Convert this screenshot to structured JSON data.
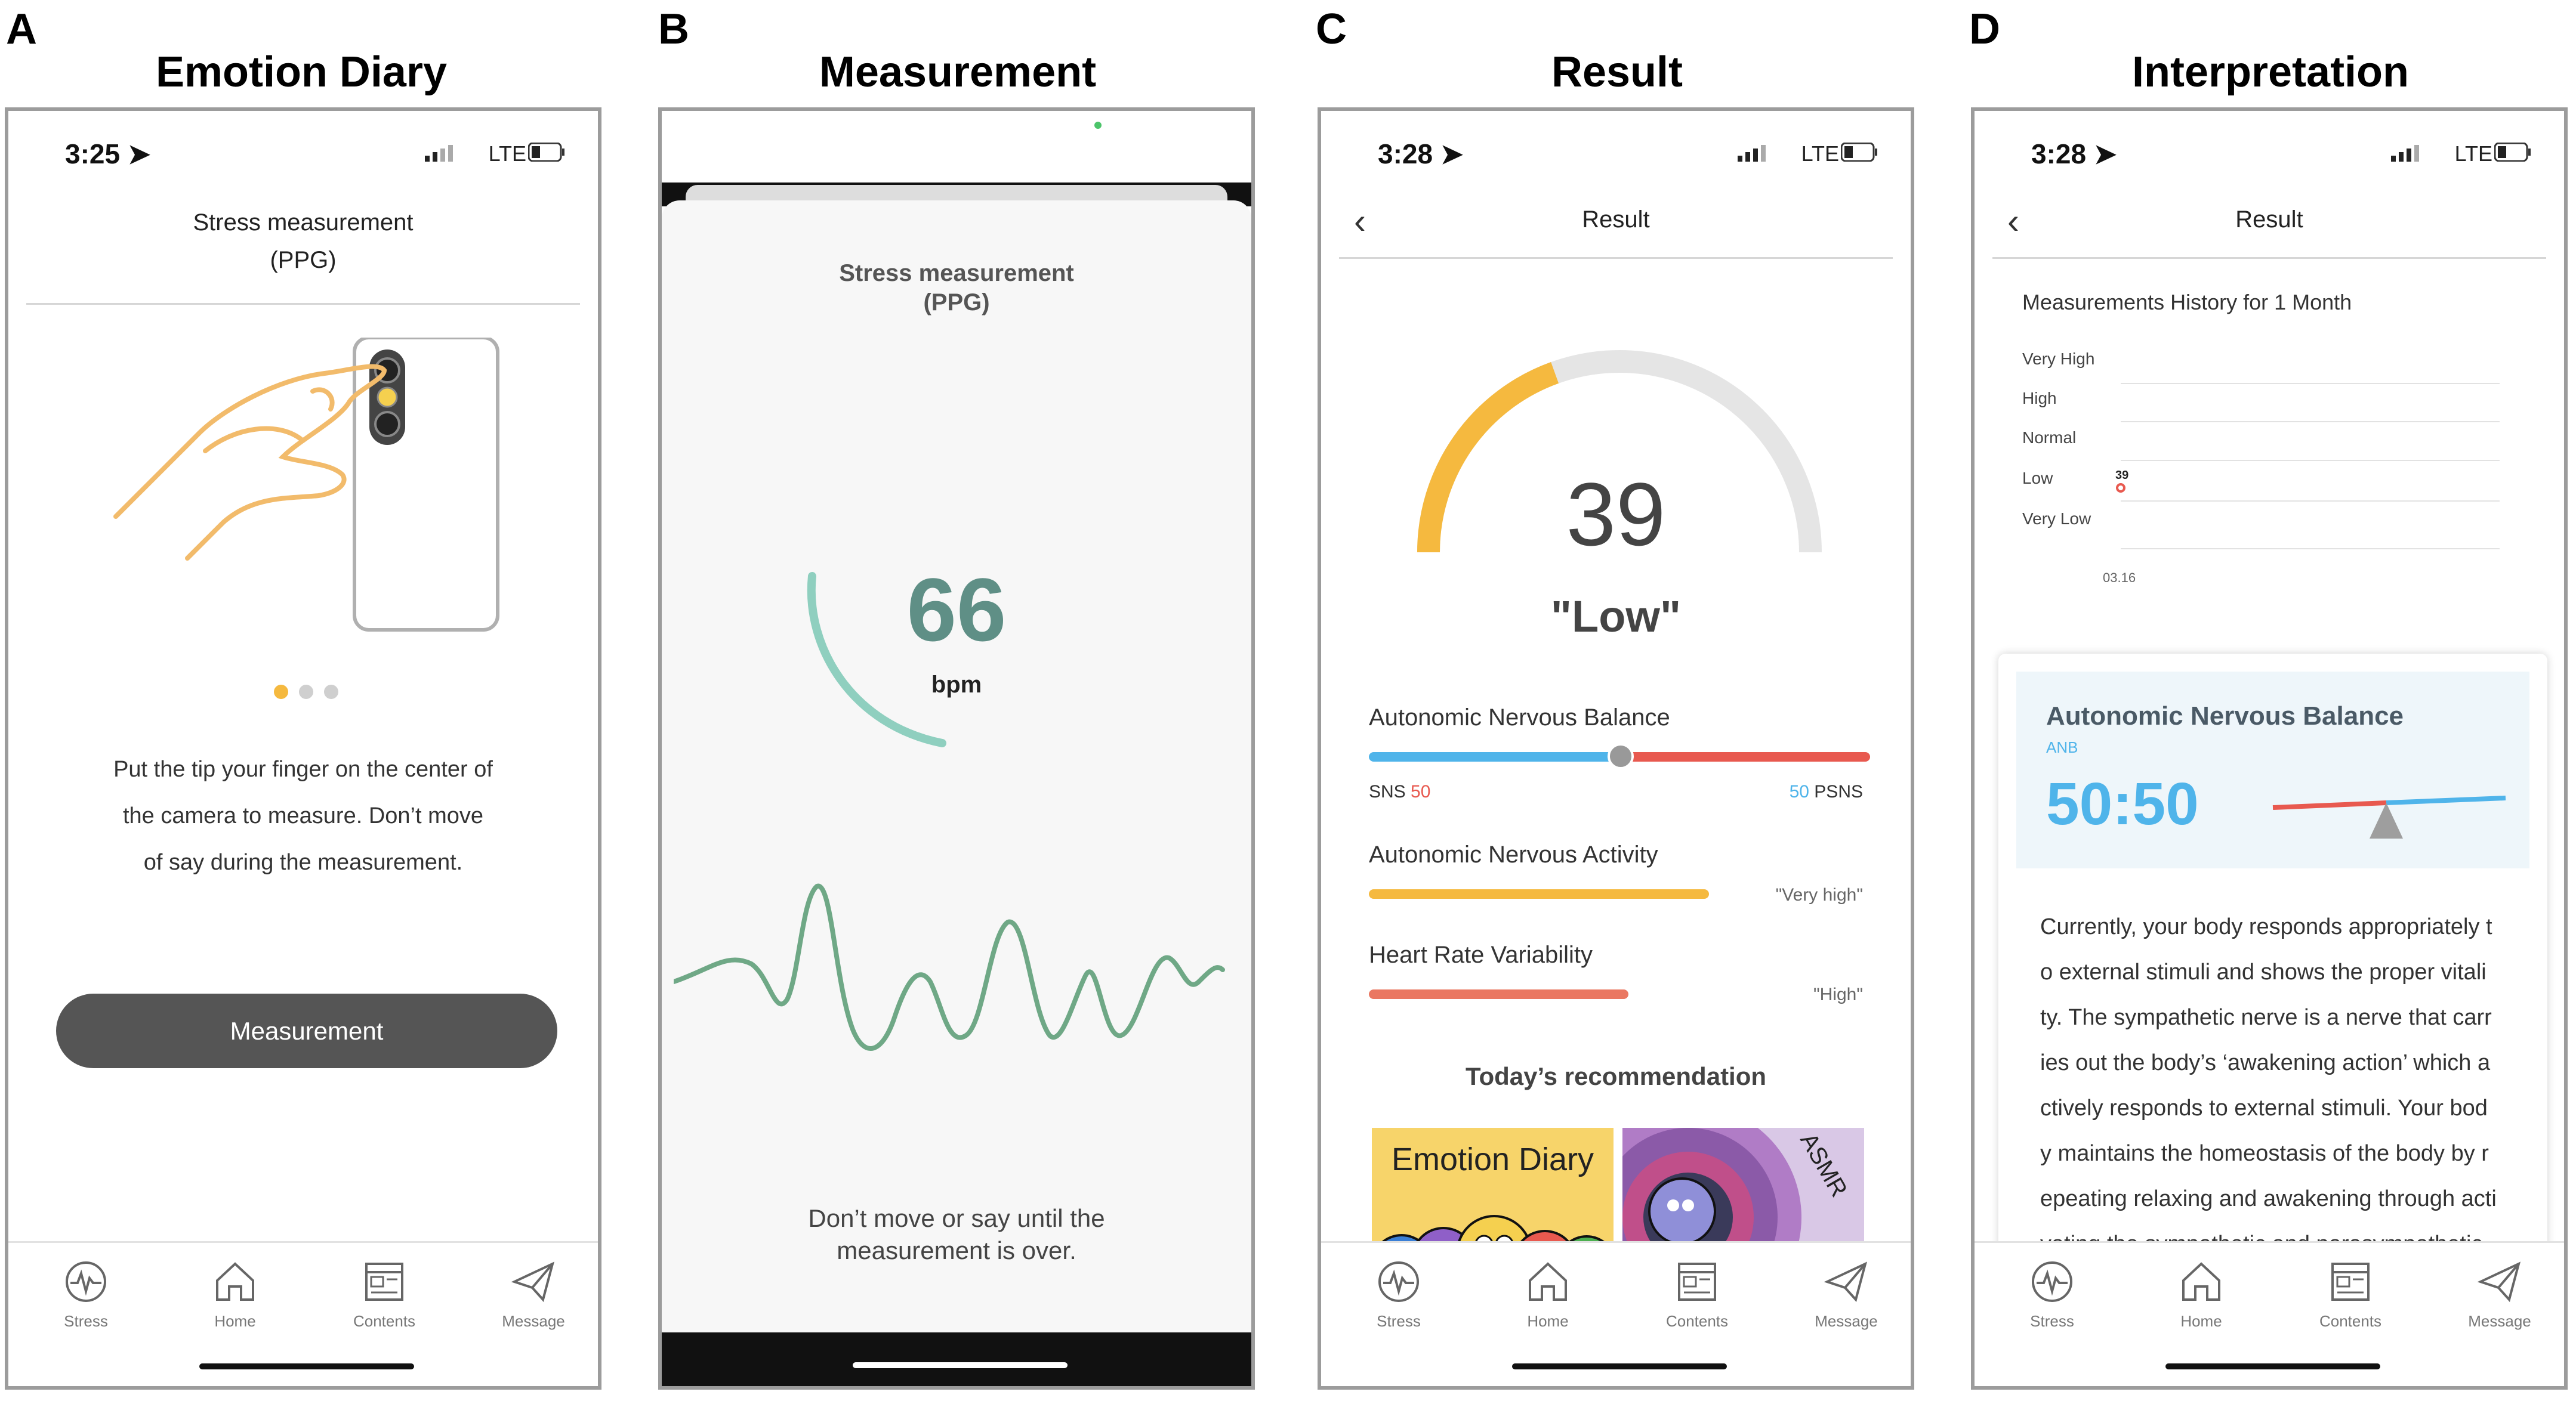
{
  "panels": {
    "a": {
      "letter": "A",
      "title": "Emotion Diary",
      "time": "3:25",
      "network": "LTE",
      "header_line1": "Stress measurement",
      "header_line2": "(PPG)",
      "instructions": [
        "Put the tip your finger on the center of",
        "the camera to measure. Don’t move",
        "of say during the measurement."
      ],
      "button": "Measurement"
    },
    "b": {
      "letter": "B",
      "title": "Measurement",
      "header_line1": "Stress measurement",
      "header_line2": "(PPG)",
      "bpm_value": "66",
      "bpm_unit": "bpm",
      "message_line1": "Don’t move or say until the",
      "message_line2": "measurement is over."
    },
    "c": {
      "letter": "C",
      "title": "Result",
      "time": "3:28",
      "network": "LTE",
      "header": "Result",
      "gauge_value": "39",
      "gauge_level": "\"Low\"",
      "gauge_fraction": 0.39,
      "anb_label": "Autonomic Nervous Balance",
      "sns_label": "SNS",
      "sns_value": "50",
      "psns_value": "50",
      "psns_label": "PSNS",
      "ana_label": "Autonomic Nervous Activity",
      "ana_value": "\"Very high\"",
      "hrv_label": "Heart Rate Variability",
      "hrv_value": "\"High\"",
      "recommendation": "Today’s recommendation",
      "card1": "Emotion Diary",
      "card2": "ASMR"
    },
    "d": {
      "letter": "D",
      "title": "Interpretation",
      "time": "3:28",
      "network": "LTE",
      "header": "Result",
      "history_title": "Measurements History for 1 Month",
      "levels": [
        "Very High",
        "High",
        "Normal",
        "Low",
        "Very Low"
      ],
      "point_value": "39",
      "point_date": "03.16",
      "card_title": "Autonomic Nervous Balance",
      "card_sub": "ANB",
      "card_ratio": "50:50",
      "text_lines": [
        "Currently, your body responds appropriately t",
        "o external stimuli and shows the proper vitali",
        "ty. The sympathetic nerve is a nerve that carr",
        "ies out the body’s ‘awakening action’ which a",
        "ctively responds to external stimuli. Your bod",
        "y maintains the homeostasis of the body by r",
        "epeating relaxing and awakening through acti",
        "vating the sympathetic and parasympathetic"
      ]
    }
  },
  "tabs": [
    "Stress",
    "Home",
    "Contents",
    "Message"
  ],
  "colors": {
    "accent": "#f5b93f",
    "sns_blue": "#4fb4ea",
    "psns_red": "#e8594f",
    "button_dark": "#555555",
    "bpm_teal": "#5f8f86",
    "wave_green": "#6fa886"
  }
}
